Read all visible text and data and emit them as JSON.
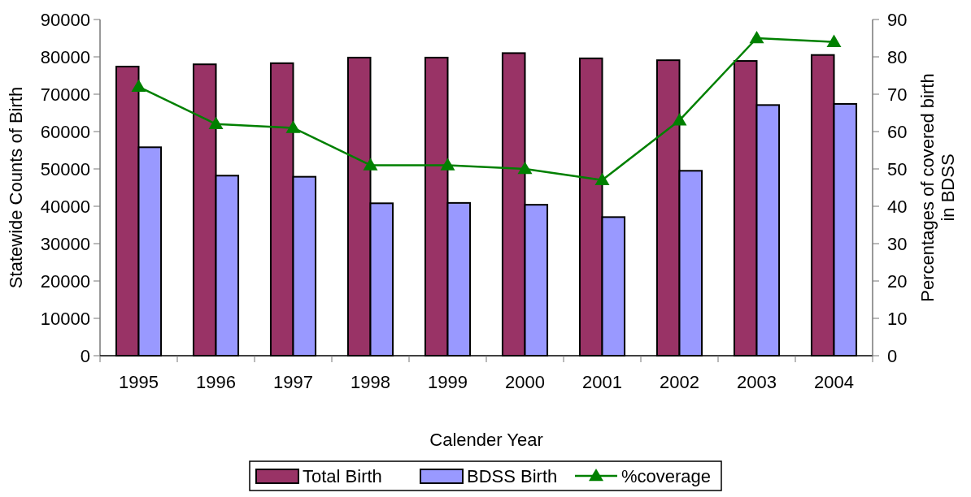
{
  "chart_data": {
    "type": "bar",
    "xlabel": "Calender Year",
    "ylabel": "Statewide Counts of Birth",
    "y2label": "Percentages of covered birth in BDSS",
    "categories": [
      "1995",
      "1996",
      "1997",
      "1998",
      "1999",
      "2000",
      "2001",
      "2002",
      "2003",
      "2004"
    ],
    "series": [
      {
        "name": "Total Birth",
        "color": "#993366",
        "values": [
          77400,
          78000,
          78300,
          79800,
          79800,
          81000,
          79600,
          79100,
          78900,
          80500
        ]
      },
      {
        "name": "BDSS Birth",
        "color": "#9999ff",
        "values": [
          55800,
          48200,
          47900,
          40800,
          40900,
          40400,
          37100,
          49500,
          67100,
          67400
        ]
      },
      {
        "name": "%coverage",
        "type": "line",
        "axis": "y2",
        "color": "#008000",
        "marker": "triangle",
        "values": [
          72,
          62,
          61,
          51,
          51,
          50,
          47,
          63,
          85,
          84
        ]
      }
    ],
    "ylim": [
      0,
      90000
    ],
    "yticks": [
      0,
      10000,
      20000,
      30000,
      40000,
      50000,
      60000,
      70000,
      80000,
      90000
    ],
    "y2lim": [
      0,
      90
    ],
    "y2ticks": [
      0,
      10,
      20,
      30,
      40,
      50,
      60,
      70,
      80,
      90
    ],
    "grid": false,
    "legend": "bottom"
  }
}
